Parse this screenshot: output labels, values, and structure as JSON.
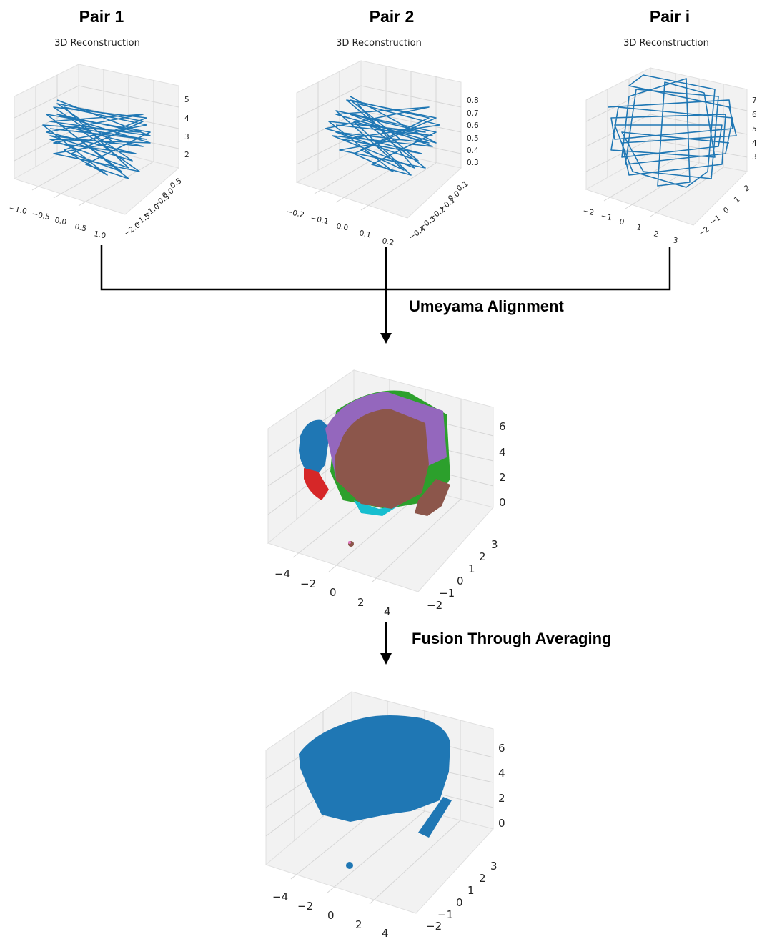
{
  "pairs": [
    {
      "title": "Pair 1",
      "plot_title": "3D Reconstruction",
      "z_ticks": [
        "5",
        "4",
        "3",
        "2"
      ],
      "x_ticks": [
        "−1.0",
        "−0.5",
        "0.0",
        "0.5",
        "1.0"
      ],
      "y_ticks": [
        "0.5",
        "0.0",
        "−0.5",
        "−1.0",
        "−1.5",
        "−2.0"
      ]
    },
    {
      "title": "Pair 2",
      "plot_title": "3D Reconstruction",
      "z_ticks": [
        "0.8",
        "0.7",
        "0.6",
        "0.5",
        "0.4",
        "0.3"
      ],
      "x_ticks": [
        "−0.2",
        "−0.1",
        "0.0",
        "0.1",
        "0.2"
      ],
      "y_ticks": [
        "0.1",
        "0.0",
        "−0.1",
        "−0.2",
        "−0.3",
        "−0.4"
      ]
    },
    {
      "title": "Pair i",
      "plot_title": "3D Reconstruction",
      "z_ticks": [
        "7",
        "6",
        "5",
        "4",
        "3"
      ],
      "x_ticks": [
        "−2",
        "−1",
        "0",
        "1",
        "2",
        "3"
      ],
      "y_ticks": [
        "2",
        "1",
        "0",
        "−1",
        "−2"
      ]
    }
  ],
  "steps": {
    "alignment": "Umeyama Alignment",
    "fusion": "Fusion Through Averaging"
  },
  "aligned_plot": {
    "z_ticks": [
      "6",
      "4",
      "2",
      "0"
    ],
    "x_ticks": [
      "−4",
      "−2",
      "0",
      "2",
      "4"
    ],
    "y_ticks": [
      "3",
      "2",
      "1",
      "0",
      "−1",
      "−2"
    ],
    "colors": [
      "#1f77b4",
      "#d62728",
      "#2ca02c",
      "#9467bd",
      "#8c564b",
      "#17becf",
      "#e377c2",
      "#7f7f7f"
    ]
  },
  "fused_plot": {
    "z_ticks": [
      "6",
      "4",
      "2",
      "0"
    ],
    "x_ticks": [
      "−4",
      "−2",
      "0",
      "2",
      "4"
    ],
    "y_ticks": [
      "3",
      "2",
      "1",
      "0",
      "−1",
      "−2"
    ],
    "color": "#1f77b4"
  },
  "trajectory_color": "#1f77b4"
}
